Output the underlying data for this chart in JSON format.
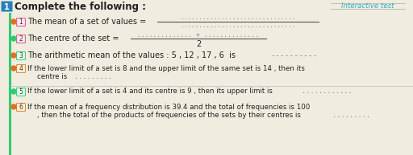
{
  "bg_color": "#f0ece0",
  "header_box_color": "#2980b9",
  "header_text": "Complete the following :",
  "header_num": "1",
  "interactive_text": "Interactive test",
  "teal_line_color": "#2ecc71",
  "separator_color": "#bbbbbb",
  "dot_color": "#888888",
  "text_color": "#222222",
  "items": [
    {
      "num": "1",
      "bullet": "orange",
      "box": "pink",
      "frac_num_dots": "...............................",
      "frac_line": true,
      "frac_den_dots": "...............................",
      "answer_dots": null
    },
    {
      "num": "2",
      "bullet": "teal",
      "box": "pink",
      "frac_num_dots": ".............. + ..............",
      "frac_line": true,
      "frac_den": "2",
      "answer_dots": null
    },
    {
      "num": "3",
      "bullet": "orange",
      "box": "teal",
      "line1": "The arithmetic mean of the values : 5 , 12 , 17 , 6  is",
      "answer_dots": "----------"
    },
    {
      "num": "4",
      "bullet": "orange",
      "box": "orange",
      "line1": "If the lower limit of a set is 8 and the upper limit of the same set is 14 , then its",
      "line2": "centre is",
      "answer_dots": "........."
    },
    {
      "num": "5",
      "bullet": "teal",
      "box": "teal",
      "line1": "If the lower limit of a set is 4 and its centre is 9 , then its upper limit is",
      "answer_dots": "............"
    },
    {
      "num": "6",
      "bullet": "orange",
      "box": "orange",
      "line1": "If the mean of a frequency distribution is 39.4 and the total of frequencies is 100",
      "line2": ", then the total of the products of frequencies of the sets by their centres is",
      "answer_dots": "........."
    }
  ]
}
